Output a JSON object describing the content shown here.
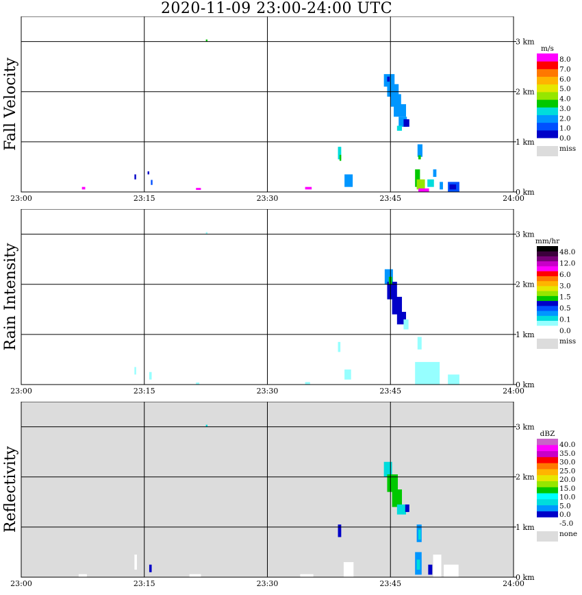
{
  "title": "2020-11-09   23:00-24:00 UTC",
  "time_axis": {
    "ticks": [
      {
        "minute": 0,
        "label": "23:00"
      },
      {
        "minute": 15,
        "label": "23:15"
      },
      {
        "minute": 30,
        "label": "23:30"
      },
      {
        "minute": 45,
        "label": "23:45"
      },
      {
        "minute": 60,
        "label": "24:00"
      }
    ]
  },
  "height_axis": {
    "max_km": 3.5,
    "ticks": [
      {
        "km": 0,
        "label": "0 km"
      },
      {
        "km": 1,
        "label": "1 km"
      },
      {
        "km": 2,
        "label": "2 km"
      },
      {
        "km": 3,
        "label": "3 km"
      }
    ]
  },
  "colors": {
    "frame": "#000000",
    "missing": "#dcdcdc",
    "background": "#ffffff"
  },
  "chart_data": [
    {
      "type": "heatmap",
      "name": "Fall Velocity",
      "background": "#ffffff",
      "colorbar": {
        "unit": "m/s",
        "colors": [
          "#0000c8",
          "#0050ff",
          "#0096ff",
          "#00dcdc",
          "#00c800",
          "#96e600",
          "#e6e600",
          "#ffb400",
          "#ff7800",
          "#ff0000",
          "#ff00ff"
        ],
        "labels": [
          "0.0",
          "1.0",
          "2.0",
          "3.0",
          "4.0",
          "5.0",
          "6.0",
          "7.0",
          "8.0"
        ],
        "missing_label": "miss"
      },
      "patches": [
        {
          "t": 22.5,
          "h": 3.0,
          "dt": 0.2,
          "dh": 0.04,
          "color": "#00c800"
        },
        {
          "t": 7.4,
          "h": 0.05,
          "dt": 0.4,
          "dh": 0.05,
          "color": "#ff00ff"
        },
        {
          "t": 21.3,
          "h": 0.04,
          "dt": 0.6,
          "dh": 0.04,
          "color": "#ff00ff"
        },
        {
          "t": 34.6,
          "h": 0.05,
          "dt": 0.8,
          "dh": 0.05,
          "color": "#ff00ff"
        },
        {
          "t": 13.8,
          "h": 0.25,
          "dt": 0.2,
          "dh": 0.1,
          "color": "#0000c8"
        },
        {
          "t": 15.4,
          "h": 0.35,
          "dt": 0.2,
          "dh": 0.06,
          "color": "#0000c8"
        },
        {
          "t": 15.8,
          "h": 0.14,
          "dt": 0.2,
          "dh": 0.1,
          "color": "#0050ff"
        },
        {
          "t": 38.6,
          "h": 0.65,
          "dt": 0.4,
          "dh": 0.25,
          "color": "#00dcdc"
        },
        {
          "t": 38.8,
          "h": 0.62,
          "dt": 0.2,
          "dh": 0.12,
          "color": "#00c800"
        },
        {
          "t": 39.4,
          "h": 0.1,
          "dt": 1.0,
          "dh": 0.25,
          "color": "#0096ff"
        },
        {
          "t": 44.2,
          "h": 2.1,
          "dt": 1.3,
          "dh": 0.25,
          "color": "#0096ff"
        },
        {
          "t": 44.6,
          "h": 1.9,
          "dt": 1.4,
          "dh": 0.25,
          "color": "#0096ff"
        },
        {
          "t": 45.0,
          "h": 1.7,
          "dt": 1.3,
          "dh": 0.25,
          "color": "#0096ff"
        },
        {
          "t": 45.4,
          "h": 1.5,
          "dt": 1.5,
          "dh": 0.25,
          "color": "#0096ff"
        },
        {
          "t": 46.0,
          "h": 1.3,
          "dt": 1.0,
          "dh": 0.2,
          "color": "#0096ff"
        },
        {
          "t": 46.6,
          "h": 1.3,
          "dt": 0.7,
          "dh": 0.15,
          "color": "#0000c8"
        },
        {
          "t": 45.8,
          "h": 1.22,
          "dt": 0.6,
          "dh": 0.1,
          "color": "#00dcdc"
        },
        {
          "t": 44.6,
          "h": 2.2,
          "dt": 0.3,
          "dh": 0.1,
          "color": "#0000c8"
        },
        {
          "t": 48.3,
          "h": 0.7,
          "dt": 0.6,
          "dh": 0.25,
          "color": "#0096ff"
        },
        {
          "t": 48.4,
          "h": 0.65,
          "dt": 0.3,
          "dh": 0.08,
          "color": "#00c800"
        },
        {
          "t": 48.0,
          "h": 0.1,
          "dt": 0.6,
          "dh": 0.35,
          "color": "#00c800"
        },
        {
          "t": 48.2,
          "h": 0.05,
          "dt": 1.0,
          "dh": 0.2,
          "color": "#96e600"
        },
        {
          "t": 48.4,
          "h": 0.0,
          "dt": 1.3,
          "dh": 0.07,
          "color": "#ff00ff"
        },
        {
          "t": 49.5,
          "h": 0.1,
          "dt": 0.8,
          "dh": 0.15,
          "color": "#00dcdc"
        },
        {
          "t": 50.2,
          "h": 0.3,
          "dt": 0.4,
          "dh": 0.15,
          "color": "#0096ff"
        },
        {
          "t": 51.0,
          "h": 0.05,
          "dt": 0.4,
          "dh": 0.15,
          "color": "#0096ff"
        },
        {
          "t": 52.0,
          "h": 0.0,
          "dt": 1.4,
          "dh": 0.2,
          "color": "#0050ff"
        },
        {
          "t": 52.2,
          "h": 0.05,
          "dt": 0.8,
          "dh": 0.1,
          "color": "#0000c8"
        }
      ]
    },
    {
      "type": "heatmap",
      "name": "Rain Intensity",
      "background": "#ffffff",
      "colorbar": {
        "unit": "mm/hr",
        "colors": [
          "#ffffff",
          "#96ffff",
          "#00dcdc",
          "#0096ff",
          "#0050ff",
          "#0000c8",
          "#00c800",
          "#96e600",
          "#e6e600",
          "#ffb400",
          "#ff7800",
          "#ff0000",
          "#ff00ff",
          "#c800c8",
          "#780078",
          "#3c003c",
          "#000000"
        ],
        "labels": [
          "0.0",
          "0.1",
          "0.5",
          "1.5",
          "3.0",
          "6.0",
          "12.0",
          "48.0"
        ],
        "missing_label": "miss"
      },
      "patches": [
        {
          "t": 22.5,
          "h": 3.0,
          "dt": 0.2,
          "dh": 0.04,
          "color": "#96ffff"
        },
        {
          "t": 13.8,
          "h": 0.2,
          "dt": 0.2,
          "dh": 0.15,
          "color": "#96ffff"
        },
        {
          "t": 15.6,
          "h": 0.1,
          "dt": 0.3,
          "dh": 0.15,
          "color": "#96ffff"
        },
        {
          "t": 21.3,
          "h": 0.0,
          "dt": 0.4,
          "dh": 0.04,
          "color": "#96ffff"
        },
        {
          "t": 34.6,
          "h": 0.0,
          "dt": 0.6,
          "dh": 0.05,
          "color": "#96ffff"
        },
        {
          "t": 38.6,
          "h": 0.65,
          "dt": 0.3,
          "dh": 0.2,
          "color": "#96ffff"
        },
        {
          "t": 39.4,
          "h": 0.1,
          "dt": 0.8,
          "dh": 0.2,
          "color": "#96ffff"
        },
        {
          "t": 44.3,
          "h": 2.0,
          "dt": 1.0,
          "dh": 0.3,
          "color": "#0096ff"
        },
        {
          "t": 44.6,
          "h": 1.7,
          "dt": 1.2,
          "dh": 0.35,
          "color": "#0000c8"
        },
        {
          "t": 45.2,
          "h": 1.4,
          "dt": 1.2,
          "dh": 0.35,
          "color": "#0000c8"
        },
        {
          "t": 45.8,
          "h": 1.2,
          "dt": 1.1,
          "dh": 0.25,
          "color": "#0000c8"
        },
        {
          "t": 46.6,
          "h": 1.1,
          "dt": 0.6,
          "dh": 0.2,
          "color": "#96ffff"
        },
        {
          "t": 44.8,
          "h": 2.0,
          "dt": 0.4,
          "dh": 0.15,
          "color": "#00c800"
        },
        {
          "t": 48.3,
          "h": 0.7,
          "dt": 0.5,
          "dh": 0.25,
          "color": "#96ffff"
        },
        {
          "t": 48.0,
          "h": 0.0,
          "dt": 3.0,
          "dh": 0.45,
          "color": "#96ffff"
        },
        {
          "t": 52.0,
          "h": 0.0,
          "dt": 1.4,
          "dh": 0.2,
          "color": "#96ffff"
        }
      ]
    },
    {
      "type": "heatmap",
      "name": "Reflectivity",
      "background": "#dcdcdc",
      "colorbar": {
        "unit": "dBZ",
        "colors": [
          "#ffffff",
          "#0000c8",
          "#0096ff",
          "#00dcdc",
          "#00ffff",
          "#00c800",
          "#96e600",
          "#e6e600",
          "#ffb400",
          "#ff7800",
          "#ff0000",
          "#c800c8",
          "#ff00ff",
          "#c864c8"
        ],
        "labels": [
          "-5.0",
          "0.0",
          "5.0",
          "10.0",
          "15.0",
          "20.0",
          "25.0",
          "30.0",
          "35.0",
          "40.0"
        ],
        "missing_label": "none"
      },
      "patches": [
        {
          "t": 22.5,
          "h": 3.0,
          "dt": 0.2,
          "dh": 0.04,
          "color": "#00dcdc"
        },
        {
          "t": 7.0,
          "h": 0.0,
          "dt": 1.0,
          "dh": 0.06,
          "color": "#ffffff"
        },
        {
          "t": 13.8,
          "h": 0.15,
          "dt": 0.3,
          "dh": 0.3,
          "color": "#ffffff"
        },
        {
          "t": 15.6,
          "h": 0.1,
          "dt": 0.3,
          "dh": 0.15,
          "color": "#0000c8"
        },
        {
          "t": 20.5,
          "h": 0.0,
          "dt": 1.4,
          "dh": 0.06,
          "color": "#ffffff"
        },
        {
          "t": 34.0,
          "h": 0.0,
          "dt": 1.6,
          "dh": 0.06,
          "color": "#ffffff"
        },
        {
          "t": 38.6,
          "h": 0.8,
          "dt": 0.4,
          "dh": 0.25,
          "color": "#0000c8"
        },
        {
          "t": 39.3,
          "h": 0.0,
          "dt": 1.2,
          "dh": 0.3,
          "color": "#ffffff"
        },
        {
          "t": 44.2,
          "h": 2.0,
          "dt": 1.0,
          "dh": 0.3,
          "color": "#00dcdc"
        },
        {
          "t": 44.6,
          "h": 1.7,
          "dt": 1.3,
          "dh": 0.35,
          "color": "#00c800"
        },
        {
          "t": 45.2,
          "h": 1.4,
          "dt": 1.2,
          "dh": 0.35,
          "color": "#00c800"
        },
        {
          "t": 45.8,
          "h": 1.25,
          "dt": 1.1,
          "dh": 0.2,
          "color": "#00dcdc"
        },
        {
          "t": 46.8,
          "h": 1.3,
          "dt": 0.5,
          "dh": 0.15,
          "color": "#0000c8"
        },
        {
          "t": 48.2,
          "h": 0.7,
          "dt": 0.6,
          "dh": 0.35,
          "color": "#0096ff"
        },
        {
          "t": 48.4,
          "h": 0.75,
          "dt": 0.3,
          "dh": 0.2,
          "color": "#00dcdc"
        },
        {
          "t": 48.0,
          "h": 0.05,
          "dt": 0.8,
          "dh": 0.45,
          "color": "#0096ff"
        },
        {
          "t": 48.2,
          "h": 0.15,
          "dt": 0.4,
          "dh": 0.2,
          "color": "#00dcdc"
        },
        {
          "t": 49.6,
          "h": 0.05,
          "dt": 0.5,
          "dh": 0.2,
          "color": "#0000c8"
        },
        {
          "t": 50.2,
          "h": 0.0,
          "dt": 1.0,
          "dh": 0.45,
          "color": "#ffffff"
        },
        {
          "t": 51.5,
          "h": 0.0,
          "dt": 1.8,
          "dh": 0.25,
          "color": "#ffffff"
        }
      ]
    }
  ]
}
